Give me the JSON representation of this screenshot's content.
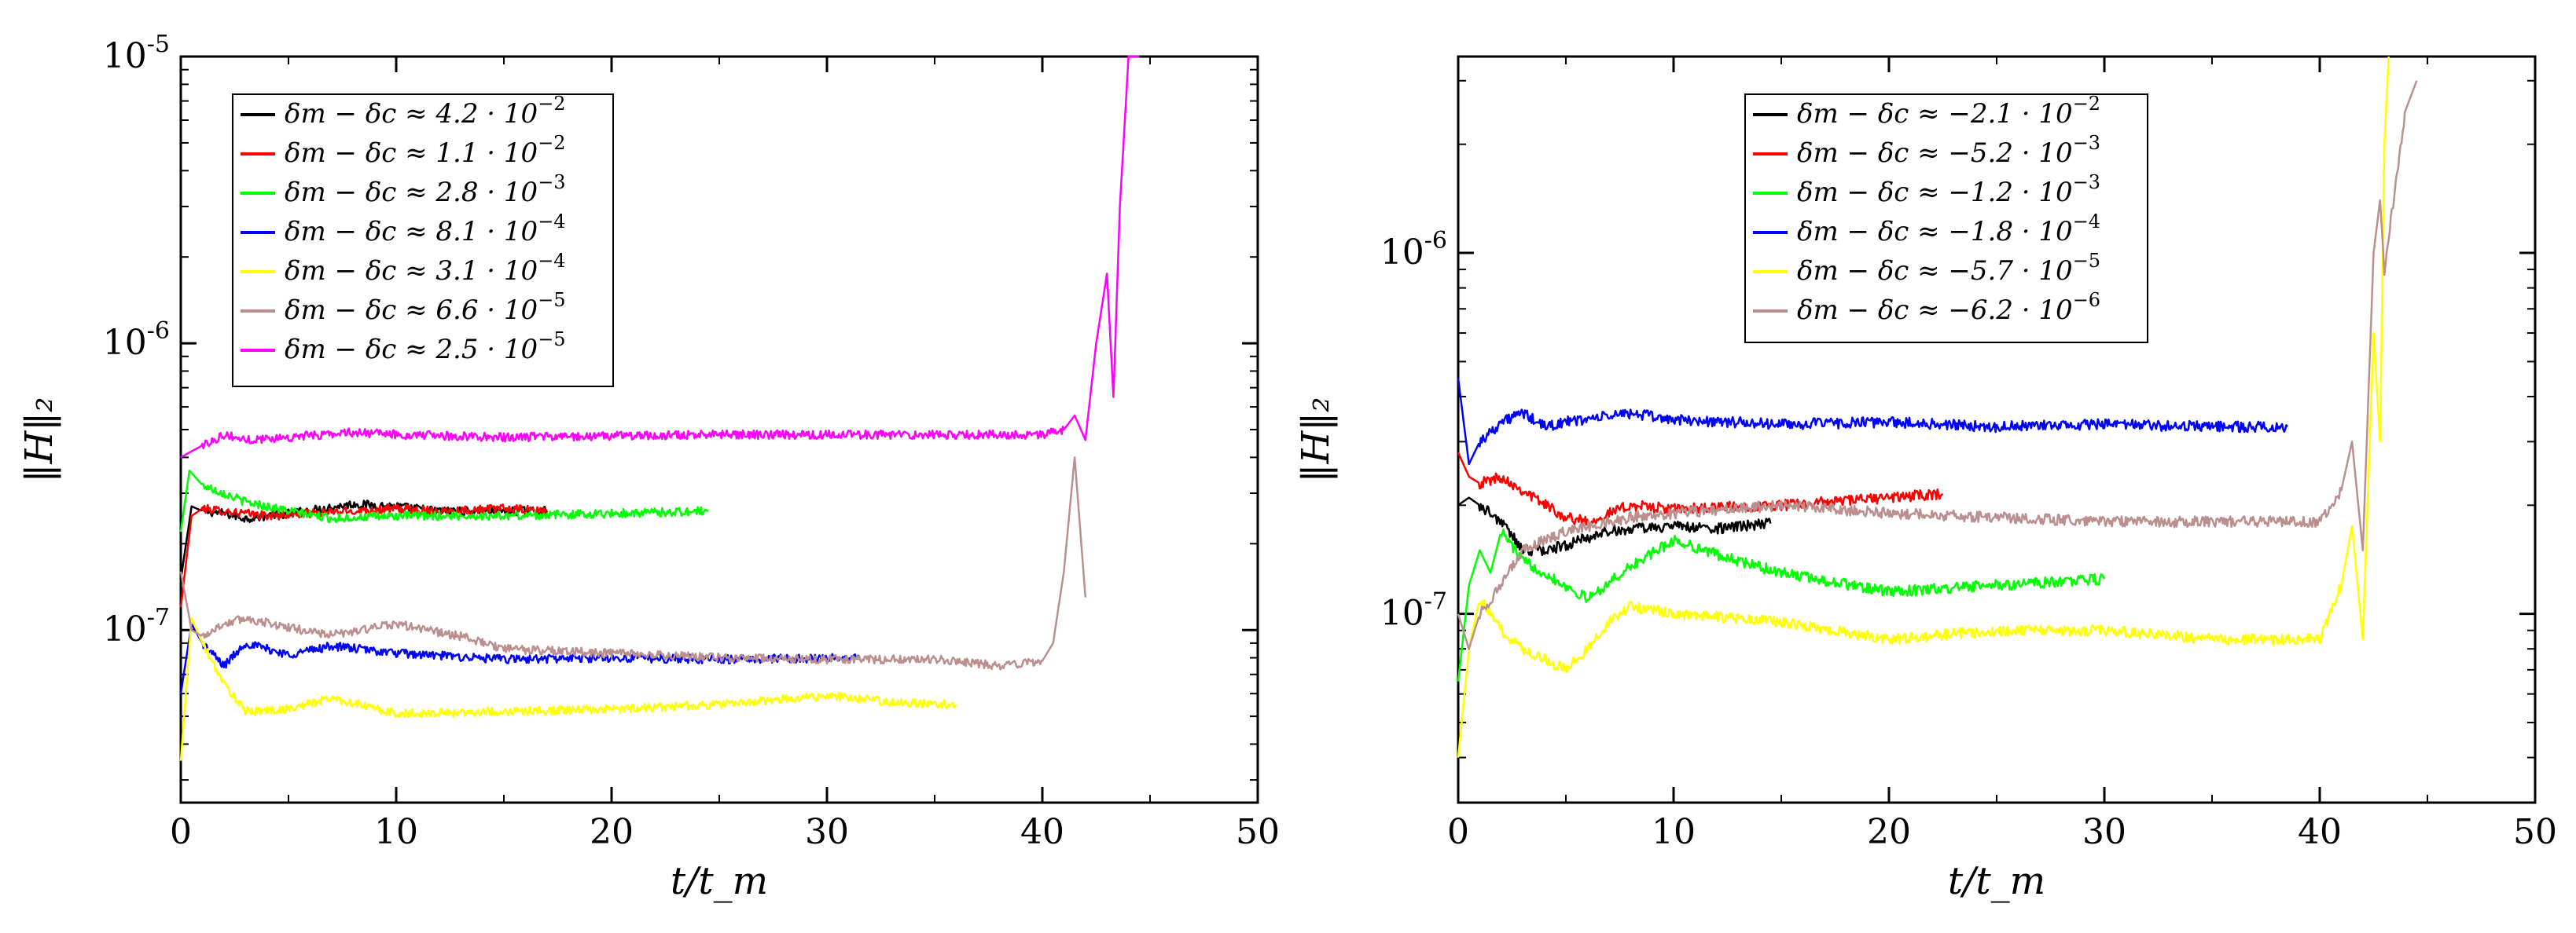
{
  "chart_data": [
    {
      "type": "line",
      "xlabel": "t/t_m",
      "ylabel": "‖H‖₂",
      "xlim": [
        0,
        50
      ],
      "ylim": [
        2.5e-08,
        1e-05
      ],
      "yscale": "log",
      "x_ticks": [
        "0",
        "10",
        "20",
        "30",
        "40",
        "50"
      ],
      "y_ticks": [
        {
          "base": "10",
          "exp": "-7",
          "value": 1e-07
        },
        {
          "base": "10",
          "exp": "-6",
          "value": 1e-06
        },
        {
          "base": "10",
          "exp": "-5",
          "value": 1e-05
        }
      ],
      "legend_position": "top-left",
      "series": [
        {
          "name": "δm − δc ≈ 4.2 · 10^-2",
          "label_main": "δm − δc ≈ 4.2 · 10",
          "label_exp": "−2",
          "color": "#000000",
          "t_end": 17,
          "x": [
            0,
            0.5,
            1,
            2,
            3,
            5,
            8,
            10,
            12,
            15,
            17
          ],
          "y": [
            1.5e-07,
            2.7e-07,
            2.6e-07,
            2.55e-07,
            2.45e-07,
            2.55e-07,
            2.75e-07,
            2.7e-07,
            2.6e-07,
            2.6e-07,
            2.6e-07
          ]
        },
        {
          "name": "δm − δc ≈ 1.1 · 10^-2",
          "label_main": "δm − δc ≈ 1.1 · 10",
          "label_exp": "−2",
          "color": "#ff0000",
          "t_end": 17,
          "x": [
            0,
            0.5,
            1,
            2,
            4,
            6,
            8,
            10,
            12,
            15,
            17
          ],
          "y": [
            1.2e-07,
            2.5e-07,
            2.65e-07,
            2.6e-07,
            2.5e-07,
            2.55e-07,
            2.6e-07,
            2.65e-07,
            2.6e-07,
            2.65e-07,
            2.6e-07
          ]
        },
        {
          "name": "δm − δc ≈ 2.8 · 10^-3",
          "label_main": "δm − δc ≈ 2.8 · 10",
          "label_exp": "−3",
          "color": "#00ff00",
          "t_end": 24.5,
          "x": [
            0,
            0.4,
            1,
            2,
            3,
            5,
            7,
            10,
            15,
            20,
            24.5
          ],
          "y": [
            2.2e-07,
            3.6e-07,
            3.2e-07,
            3e-07,
            2.8e-07,
            2.6e-07,
            2.45e-07,
            2.5e-07,
            2.5e-07,
            2.55e-07,
            2.6e-07
          ]
        },
        {
          "name": "δm − δc ≈ 8.1 · 10^-4",
          "label_main": "δm − δc ≈ 8.1 · 10",
          "label_exp": "−4",
          "color": "#0000ff",
          "t_end": 31.5,
          "x": [
            0,
            0.5,
            1,
            2,
            3,
            5,
            7,
            10,
            15,
            20,
            25,
            31.5
          ],
          "y": [
            6e-08,
            1.05e-07,
            9e-08,
            7.5e-08,
            9e-08,
            8.2e-08,
            8.8e-08,
            8.3e-08,
            7.9e-08,
            8e-08,
            7.9e-08,
            8e-08
          ]
        },
        {
          "name": "δm − δc ≈ 3.1 · 10^-4",
          "label_main": "δm − δc ≈ 3.1 · 10",
          "label_exp": "−4",
          "color": "#ffff00",
          "t_end": 36,
          "x": [
            0,
            0.5,
            1,
            2,
            3,
            5,
            7,
            10,
            15,
            20,
            25,
            30,
            33,
            36
          ],
          "y": [
            3.5e-08,
            1.1e-07,
            9e-08,
            6.5e-08,
            5.2e-08,
            5.3e-08,
            5.8e-08,
            5.1e-08,
            5.2e-08,
            5.3e-08,
            5.5e-08,
            5.9e-08,
            5.6e-08,
            5.5e-08
          ]
        },
        {
          "name": "δm − δc ≈ 6.6 · 10^-5",
          "label_main": "δm − δc ≈ 6.6 · 10",
          "label_exp": "−5",
          "color": "#bc8f8f",
          "t_end": 42,
          "x": [
            0,
            0.5,
            1,
            2,
            3,
            5,
            7,
            10,
            13,
            15,
            20,
            25,
            30,
            35,
            38,
            40,
            40.5,
            41,
            41.5,
            42
          ],
          "y": [
            1.6e-07,
            1e-07,
            9.5e-08,
            1.05e-07,
            1.1e-07,
            1.02e-07,
            9.6e-08,
            1.05e-07,
            9.5e-08,
            8.6e-08,
            8.3e-08,
            8e-08,
            7.9e-08,
            7.9e-08,
            7.5e-08,
            7.8e-08,
            9e-08,
            1.6e-07,
            4e-07,
            1.3e-07
          ]
        },
        {
          "name": "δm − δc ≈ 2.5 · 10^-5",
          "label_main": "δm − δc ≈ 2.5 · 10",
          "label_exp": "−5",
          "color": "#ff00ff",
          "t_end": 44.5,
          "x": [
            0,
            0.5,
            1,
            2,
            3,
            5,
            8,
            10,
            15,
            20,
            25,
            30,
            35,
            40,
            41,
            41.5,
            42,
            42.5,
            43,
            43.3,
            43.6,
            44,
            44.5
          ],
          "y": [
            4e-07,
            4.2e-07,
            4.4e-07,
            4.8e-07,
            4.6e-07,
            4.7e-07,
            4.9e-07,
            4.8e-07,
            4.7e-07,
            4.75e-07,
            4.8e-07,
            4.8e-07,
            4.8e-07,
            4.8e-07,
            5e-07,
            5.6e-07,
            4.6e-07,
            1e-06,
            1.75e-06,
            6.5e-07,
            3e-06,
            1e-05,
            1e-05
          ]
        }
      ]
    },
    {
      "type": "line",
      "xlabel": "t/t_m",
      "ylabel": "‖H‖₂",
      "xlim": [
        0,
        50
      ],
      "ylim": [
        3e-08,
        3.5e-06
      ],
      "yscale": "log",
      "x_ticks": [
        "0",
        "10",
        "20",
        "30",
        "40",
        "50"
      ],
      "y_ticks": [
        {
          "base": "10",
          "exp": "-7",
          "value": 1e-07
        },
        {
          "base": "10",
          "exp": "-6",
          "value": 1e-06
        }
      ],
      "legend_position": "top-center",
      "series": [
        {
          "name": "δm − δc ≈ −2.1 · 10^-2",
          "label_main": "δm − δc ≈ −2.1 · 10",
          "label_exp": "−2",
          "color": "#000000",
          "t_end": 14.5,
          "x": [
            0,
            0.5,
            1,
            2,
            3,
            4,
            5,
            7,
            10,
            12,
            14.5
          ],
          "y": [
            2e-07,
            2.1e-07,
            2e-07,
            1.8e-07,
            1.5e-07,
            1.5e-07,
            1.55e-07,
            1.7e-07,
            1.75e-07,
            1.72e-07,
            1.78e-07
          ]
        },
        {
          "name": "δm − δc ≈ −5.2 · 10^-3",
          "label_main": "δm − δc ≈ −5.2 · 10",
          "label_exp": "−3",
          "color": "#ff0000",
          "t_end": 22.5,
          "x": [
            0,
            0.5,
            1,
            2,
            3,
            5,
            6,
            8,
            10,
            15,
            20,
            22.5
          ],
          "y": [
            2.8e-07,
            2.4e-07,
            2.3e-07,
            2.4e-07,
            2.2e-07,
            1.85e-07,
            1.8e-07,
            2e-07,
            1.95e-07,
            2e-07,
            2.1e-07,
            2.15e-07
          ]
        },
        {
          "name": "δm − δc ≈ −1.2 · 10^-3",
          "label_main": "δm − δc ≈ −1.2 · 10",
          "label_exp": "−3",
          "color": "#00ff00",
          "t_end": 30,
          "x": [
            0,
            0.5,
            1,
            1.5,
            2,
            3,
            4,
            6,
            8,
            10,
            13,
            15,
            20,
            25,
            30
          ],
          "y": [
            6.5e-08,
            1.2e-07,
            1.5e-07,
            1.3e-07,
            1.7e-07,
            1.4e-07,
            1.3e-07,
            1.1e-07,
            1.35e-07,
            1.6e-07,
            1.4e-07,
            1.3e-07,
            1.15e-07,
            1.2e-07,
            1.25e-07
          ]
        },
        {
          "name": "δm − δc ≈ −1.8 · 10^-4",
          "label_main": "δm − δc ≈ −1.8 · 10",
          "label_exp": "−4",
          "color": "#0000ff",
          "t_end": 38.5,
          "x": [
            0,
            0.5,
            1,
            2,
            3,
            4,
            5,
            8,
            10,
            15,
            20,
            25,
            30,
            35,
            38.5
          ],
          "y": [
            4.5e-07,
            2.6e-07,
            3e-07,
            3.4e-07,
            3.6e-07,
            3.3e-07,
            3.4e-07,
            3.6e-07,
            3.45e-07,
            3.35e-07,
            3.4e-07,
            3.3e-07,
            3.35e-07,
            3.3e-07,
            3.3e-07
          ]
        },
        {
          "name": "δm − δc ≈ −5.7 · 10^-5",
          "label_main": "δm − δc ≈ −5.7 · 10",
          "label_exp": "−5",
          "color": "#ffff00",
          "t_end": 43.2,
          "x": [
            0,
            0.5,
            1,
            2,
            3,
            4,
            5,
            6,
            7,
            8,
            10,
            15,
            20,
            25,
            30,
            35,
            40,
            41,
            41.5,
            42,
            42.5,
            42.8,
            43,
            43.2
          ],
          "y": [
            4e-08,
            8e-08,
            1.1e-07,
            9e-08,
            8e-08,
            7.5e-08,
            7e-08,
            8e-08,
            9.5e-08,
            1.05e-07,
            1e-07,
            9.5e-08,
            8.5e-08,
            9e-08,
            9e-08,
            8.5e-08,
            8.5e-08,
            1.2e-07,
            1.75e-07,
            8.5e-08,
            6e-07,
            3e-07,
            2e-06,
            3.5e-06
          ]
        },
        {
          "name": "δm − δc ≈ −6.2 · 10^-6",
          "label_main": "δm − δc ≈ −6.2 · 10",
          "label_exp": "−6",
          "color": "#bc8f8f",
          "t_end": 44.5,
          "x": [
            0,
            0.5,
            1,
            2,
            3,
            5,
            8,
            10,
            15,
            20,
            25,
            30,
            35,
            40,
            41,
            41.5,
            42,
            42.5,
            42.8,
            43,
            44,
            44.5
          ],
          "y": [
            1e-07,
            8e-08,
            1e-07,
            1.2e-07,
            1.5e-07,
            1.7e-07,
            1.85e-07,
            1.9e-07,
            2e-07,
            1.9e-07,
            1.85e-07,
            1.8e-07,
            1.8e-07,
            1.8e-07,
            2.2e-07,
            3e-07,
            1.5e-07,
            1e-06,
            1.4e-06,
            9e-07,
            2.5e-06,
            3e-06
          ]
        }
      ]
    }
  ]
}
